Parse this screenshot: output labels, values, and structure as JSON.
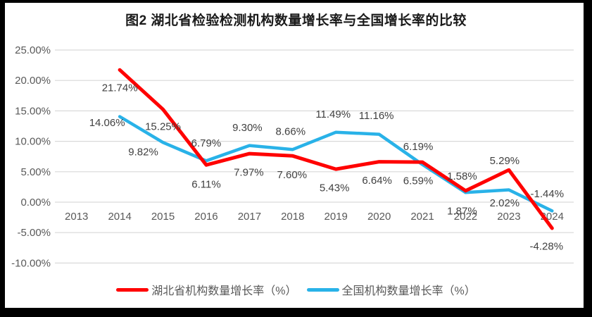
{
  "chart": {
    "title": "图2 湖北省检验检测机构数量增长率与全国增长率的比较"
  },
  "chart_data": {
    "type": "line",
    "title": "图2 湖北省检验检测机构数量增长率与全国增长率的比较",
    "categories": [
      "2013",
      "2014",
      "2015",
      "2016",
      "2017",
      "2018",
      "2019",
      "2020",
      "2021",
      "2022",
      "2023",
      "2024"
    ],
    "xlabel": "",
    "ylabel": "",
    "ylim": [
      -10,
      25
    ],
    "grid": true,
    "legend_position": "bottom",
    "y_ticks": [
      {
        "value": 25,
        "label": "25.00%"
      },
      {
        "value": 20,
        "label": "20.00%"
      },
      {
        "value": 15,
        "label": "15.00%"
      },
      {
        "value": 10,
        "label": "10.00%"
      },
      {
        "value": 5,
        "label": "5.00%"
      },
      {
        "value": 0,
        "label": "0.00%"
      },
      {
        "value": -5,
        "label": "-5.00%"
      },
      {
        "value": -10,
        "label": "-10.00%"
      }
    ],
    "series": [
      {
        "id": "national",
        "name": "全国机构数量增长率（%）",
        "color": "#29b2e8",
        "stroke_width": 4.5,
        "values": [
          null,
          14.06,
          9.82,
          6.79,
          9.3,
          8.66,
          11.49,
          11.16,
          6.19,
          1.58,
          2.02,
          -1.44
        ],
        "labels": [
          null,
          "14.06%",
          "9.82%",
          "6.79%",
          "9.30%",
          "8.66%",
          "11.49%",
          "11.16%",
          "6.19%",
          "1.58%",
          "2.02%",
          "-1.44%"
        ],
        "label_offsets": [
          null,
          [
            -18,
            8
          ],
          [
            -28,
            13
          ],
          [
            0,
            -26
          ],
          [
            -3,
            -26
          ],
          [
            -3,
            -26
          ],
          [
            -4,
            -26
          ],
          [
            -4,
            -27
          ],
          [
            -6,
            -26
          ],
          [
            -5,
            -24
          ],
          [
            -6,
            18
          ],
          [
            -7,
            -25
          ]
        ]
      },
      {
        "id": "hubei",
        "name": "湖北省机构数量增长率（%）",
        "color": "#ff0000",
        "stroke_width": 5,
        "values": [
          null,
          21.74,
          15.25,
          6.11,
          7.97,
          7.6,
          5.43,
          6.64,
          6.59,
          1.87,
          5.29,
          -4.28
        ],
        "labels": [
          null,
          "21.74%",
          "15.25%",
          "6.11%",
          "7.97%",
          "7.60%",
          "5.43%",
          "6.64%",
          "6.59%",
          "1.87%",
          "5.29%",
          "-4.28%"
        ],
        "label_offsets": [
          null,
          [
            0,
            25
          ],
          [
            0,
            24
          ],
          [
            0,
            27
          ],
          [
            -1,
            26
          ],
          [
            -1,
            26
          ],
          [
            -2,
            26
          ],
          [
            -3,
            26
          ],
          [
            -6,
            26
          ],
          [
            -5,
            28
          ],
          [
            -6,
            -14
          ],
          [
            -8,
            25
          ]
        ]
      }
    ],
    "legend_order": [
      "hubei",
      "national"
    ],
    "colors": {
      "grid": "#d9d9d9",
      "axis_text": "#595959",
      "data_label_text": "#404040",
      "frame": "#000000",
      "background": "#ffffff"
    }
  }
}
